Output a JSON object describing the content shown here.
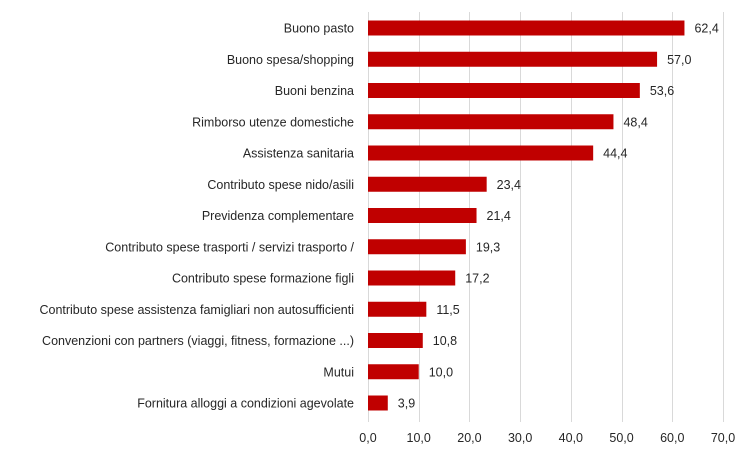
{
  "chart_data": {
    "type": "bar",
    "orientation": "horizontal",
    "categories": [
      "Buono pasto",
      "Buono spesa/shopping",
      "Buoni benzina",
      "Rimborso utenze domestiche",
      "Assistenza sanitaria",
      "Contributo spese nido/asili",
      "Previdenza complementare",
      "Contributo spese trasporti / servizi trasporto /",
      "Contributo spese formazione figli",
      "Contributo spese assistenza famigliari non autosufficienti",
      "Convenzioni con partners (viaggi, fitness, formazione ...)",
      "Mutui",
      "Fornitura alloggi a condizioni agevolate"
    ],
    "values": [
      62.4,
      57.0,
      53.6,
      48.4,
      44.4,
      23.4,
      21.4,
      19.3,
      17.2,
      11.5,
      10.8,
      10.0,
      3.9
    ],
    "value_labels": [
      "62,4",
      "57,0",
      "53,6",
      "48,4",
      "44,4",
      "23,4",
      "21,4",
      "19,3",
      "17,2",
      "11,5",
      "10,8",
      "10,0",
      "3,9"
    ],
    "xlim": [
      0,
      70
    ],
    "x_ticks": [
      0,
      10,
      20,
      30,
      40,
      50,
      60,
      70
    ],
    "x_tick_labels": [
      "0,0",
      "10,0",
      "20,0",
      "30,0",
      "40,0",
      "50,0",
      "60,0",
      "70,0"
    ],
    "grid": "vertical",
    "legend": "none",
    "bar_color": "#c00000",
    "grid_color": "#d9d9d9"
  }
}
